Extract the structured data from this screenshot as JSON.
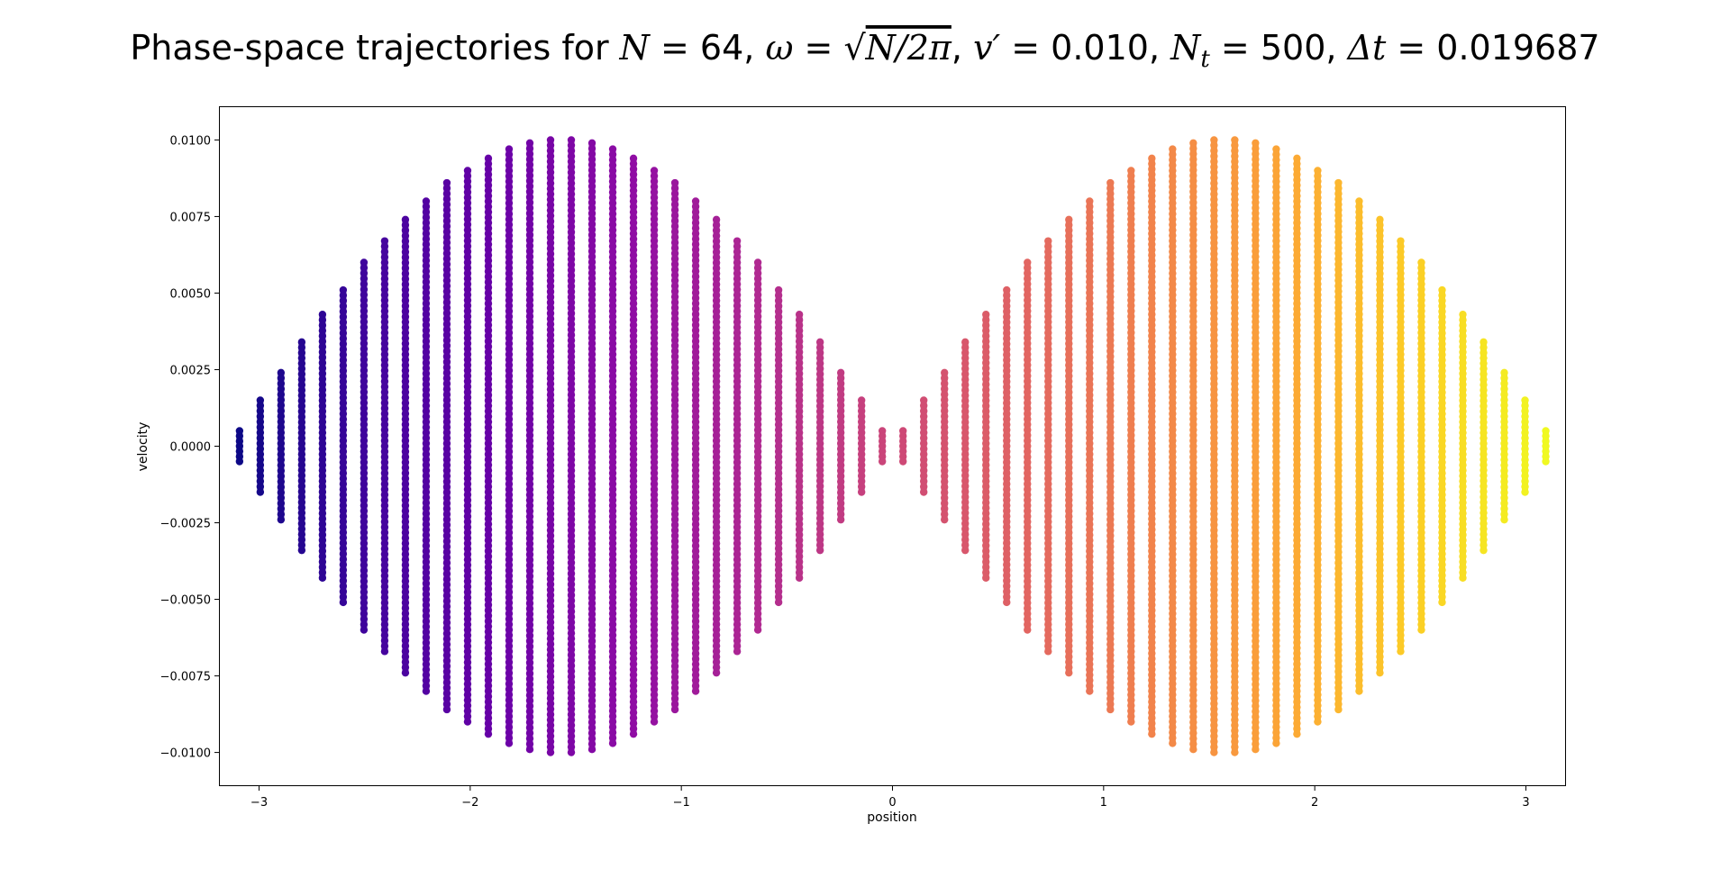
{
  "chart_data": {
    "type": "scatter",
    "title": {
      "prefix": "Phase-space trajectories for ",
      "n_label": "N",
      "n_value": "64",
      "omega_label": "ω",
      "omega_expr": "N/2π",
      "v_label": "v′",
      "v_value": "0.010",
      "nt_label": "N",
      "nt_sub": "t",
      "nt_value": "500",
      "dt_label": "Δt",
      "dt_value": "0.019687"
    },
    "xlabel": "position",
    "ylabel": "velocity",
    "xlim": [
      -3.19,
      3.19
    ],
    "ylim": [
      -0.0111,
      0.0111
    ],
    "xticks": [
      -3,
      -2,
      -1,
      0,
      1,
      2,
      3
    ],
    "xtick_labels": [
      "−3",
      "−2",
      "−1",
      "0",
      "1",
      "2",
      "3"
    ],
    "yticks": [
      -0.01,
      -0.0075,
      -0.005,
      -0.0025,
      0,
      0.0025,
      0.005,
      0.0075,
      0.01
    ],
    "ytick_labels": [
      "−0.0100",
      "−0.0075",
      "−0.0050",
      "−0.0025",
      "0.0000",
      "0.0025",
      "0.0050",
      "0.0075",
      "0.0100"
    ],
    "grid": false,
    "colormap": "plasma",
    "n_particles": 64,
    "v_amplitude": 0.01,
    "position_start": -3.0925,
    "position_spacing": 0.0982,
    "series": [
      {
        "x": -3.0925,
        "vmax": 0.0005
      },
      {
        "x": -2.9943,
        "vmax": 0.0015
      },
      {
        "x": -2.8961,
        "vmax": 0.0024
      },
      {
        "x": -2.7979,
        "vmax": 0.0034
      },
      {
        "x": -2.6997,
        "vmax": 0.0043
      },
      {
        "x": -2.6015,
        "vmax": 0.0051
      },
      {
        "x": -2.5033,
        "vmax": 0.006
      },
      {
        "x": -2.4051,
        "vmax": 0.0067
      },
      {
        "x": -2.3069,
        "vmax": 0.0074
      },
      {
        "x": -2.2087,
        "vmax": 0.008
      },
      {
        "x": -2.1105,
        "vmax": 0.0086
      },
      {
        "x": -2.0123,
        "vmax": 0.009
      },
      {
        "x": -1.9141,
        "vmax": 0.0094
      },
      {
        "x": -1.8159,
        "vmax": 0.0097
      },
      {
        "x": -1.7177,
        "vmax": 0.0099
      },
      {
        "x": -1.6195,
        "vmax": 0.01
      },
      {
        "x": -1.5213,
        "vmax": 0.01
      },
      {
        "x": -1.4231,
        "vmax": 0.0099
      },
      {
        "x": -1.3249,
        "vmax": 0.0097
      },
      {
        "x": -1.2267,
        "vmax": 0.0094
      },
      {
        "x": -1.1285,
        "vmax": 0.009
      },
      {
        "x": -1.0303,
        "vmax": 0.0086
      },
      {
        "x": -0.9321,
        "vmax": 0.008
      },
      {
        "x": -0.8339,
        "vmax": 0.0074
      },
      {
        "x": -0.7357,
        "vmax": 0.0067
      },
      {
        "x": -0.6375,
        "vmax": 0.006
      },
      {
        "x": -0.5393,
        "vmax": 0.0051
      },
      {
        "x": -0.4411,
        "vmax": 0.0043
      },
      {
        "x": -0.3429,
        "vmax": 0.0034
      },
      {
        "x": -0.2447,
        "vmax": 0.0024
      },
      {
        "x": -0.1465,
        "vmax": 0.0015
      },
      {
        "x": -0.0483,
        "vmax": 0.0005
      },
      {
        "x": 0.0499,
        "vmax": 0.0005
      },
      {
        "x": 0.1481,
        "vmax": 0.0015
      },
      {
        "x": 0.2463,
        "vmax": 0.0024
      },
      {
        "x": 0.3445,
        "vmax": 0.0034
      },
      {
        "x": 0.4427,
        "vmax": 0.0043
      },
      {
        "x": 0.5409,
        "vmax": 0.0051
      },
      {
        "x": 0.6391,
        "vmax": 0.006
      },
      {
        "x": 0.7373,
        "vmax": 0.0067
      },
      {
        "x": 0.8355,
        "vmax": 0.0074
      },
      {
        "x": 0.9337,
        "vmax": 0.008
      },
      {
        "x": 1.0319,
        "vmax": 0.0086
      },
      {
        "x": 1.1301,
        "vmax": 0.009
      },
      {
        "x": 1.2283,
        "vmax": 0.0094
      },
      {
        "x": 1.3265,
        "vmax": 0.0097
      },
      {
        "x": 1.4247,
        "vmax": 0.0099
      },
      {
        "x": 1.5229,
        "vmax": 0.01
      },
      {
        "x": 1.6211,
        "vmax": 0.01
      },
      {
        "x": 1.7193,
        "vmax": 0.0099
      },
      {
        "x": 1.8175,
        "vmax": 0.0097
      },
      {
        "x": 1.9157,
        "vmax": 0.0094
      },
      {
        "x": 2.0139,
        "vmax": 0.009
      },
      {
        "x": 2.1121,
        "vmax": 0.0086
      },
      {
        "x": 2.2103,
        "vmax": 0.008
      },
      {
        "x": 2.3085,
        "vmax": 0.0074
      },
      {
        "x": 2.4067,
        "vmax": 0.0067
      },
      {
        "x": 2.5049,
        "vmax": 0.006
      },
      {
        "x": 2.6031,
        "vmax": 0.0051
      },
      {
        "x": 2.7013,
        "vmax": 0.0043
      },
      {
        "x": 2.7995,
        "vmax": 0.0034
      },
      {
        "x": 2.8977,
        "vmax": 0.0024
      },
      {
        "x": 2.9959,
        "vmax": 0.0015
      },
      {
        "x": 3.0941,
        "vmax": 0.0005
      }
    ]
  }
}
